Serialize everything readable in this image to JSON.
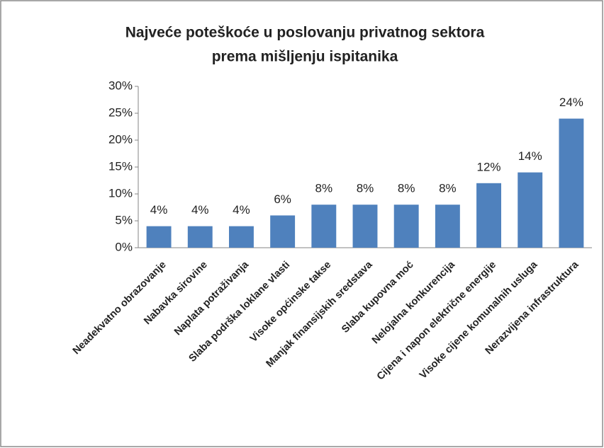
{
  "chart_data": {
    "type": "bar",
    "title": [
      "Najveće poteškoće u poslovanju privatnog sektora",
      "prema mišljenju ispitanika"
    ],
    "categories": [
      "Neadekvatno obrazovanje",
      "Nabavka sirovine",
      "Naplata potraživanja",
      "Slaba podrška loklane vlasti",
      "Visoke općinske takse",
      "Manjak finansijskih sredstava",
      "Slaba kupovna moć",
      "Nelojalna konkurencija",
      "Cijena i napon električne energije",
      "Visoke cijene komunalnih usluga",
      "Nerazvijena infrastruktura"
    ],
    "values": [
      4,
      4,
      4,
      6,
      8,
      8,
      8,
      8,
      12,
      14,
      24
    ],
    "value_labels": [
      "4%",
      "4%",
      "4%",
      "6%",
      "8%",
      "8%",
      "8%",
      "8%",
      "12%",
      "14%",
      "24%"
    ],
    "color": "#4f81bd",
    "ylim": [
      0,
      30
    ],
    "yticks": [
      {
        "value": 0,
        "label": "0%"
      },
      {
        "value": 5,
        "label": "5%"
      },
      {
        "value": 10,
        "label": "10%"
      },
      {
        "value": 15,
        "label": "15%"
      },
      {
        "value": 20,
        "label": "20%"
      },
      {
        "value": 25,
        "label": "25%"
      },
      {
        "value": 30,
        "label": "30%"
      }
    ],
    "grid": false
  }
}
